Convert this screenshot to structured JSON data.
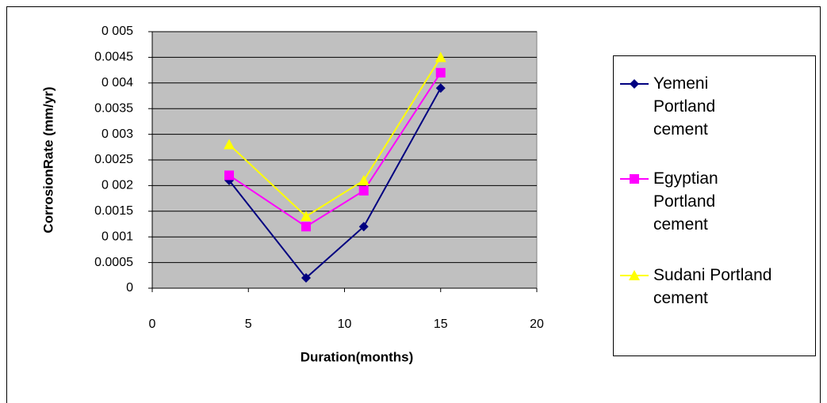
{
  "chart_data": {
    "type": "line",
    "x_label": "Duration(months)",
    "y_label": "CorrosionRate (mm/yr)",
    "x": [
      4,
      8,
      11,
      15
    ],
    "series": [
      {
        "name": "Yemeni Portland cement",
        "color": "#000080",
        "marker": "diamond",
        "values": [
          0.0021,
          0.0002,
          0.0012,
          0.0039
        ]
      },
      {
        "name": "Egyptian Portland cement",
        "color": "#ff00ff",
        "marker": "square",
        "values": [
          0.0022,
          0.0012,
          0.0019,
          0.0042
        ]
      },
      {
        "name": "Sudani Portland cement",
        "color": "#ffff00",
        "marker": "triangle",
        "values": [
          0.0028,
          0.0014,
          0.0021,
          0.0045
        ]
      }
    ],
    "xlim": [
      0,
      20
    ],
    "xticks": [
      0,
      5,
      10,
      15,
      20
    ],
    "ylim": [
      0,
      0.005
    ],
    "yticks": [
      0,
      0.0005,
      {
        "value": 0.001,
        "label": "0 001"
      },
      0.0015,
      {
        "value": 0.002,
        "label": "0 002"
      },
      0.0025,
      {
        "value": 0.003,
        "label": "0 003"
      },
      0.0035,
      {
        "value": 0.004,
        "label": "0 004"
      },
      0.0045,
      {
        "value": 0.005,
        "label": "0 005"
      }
    ],
    "grid": true,
    "plot_background": "#c0c0c0",
    "legend": "right"
  }
}
